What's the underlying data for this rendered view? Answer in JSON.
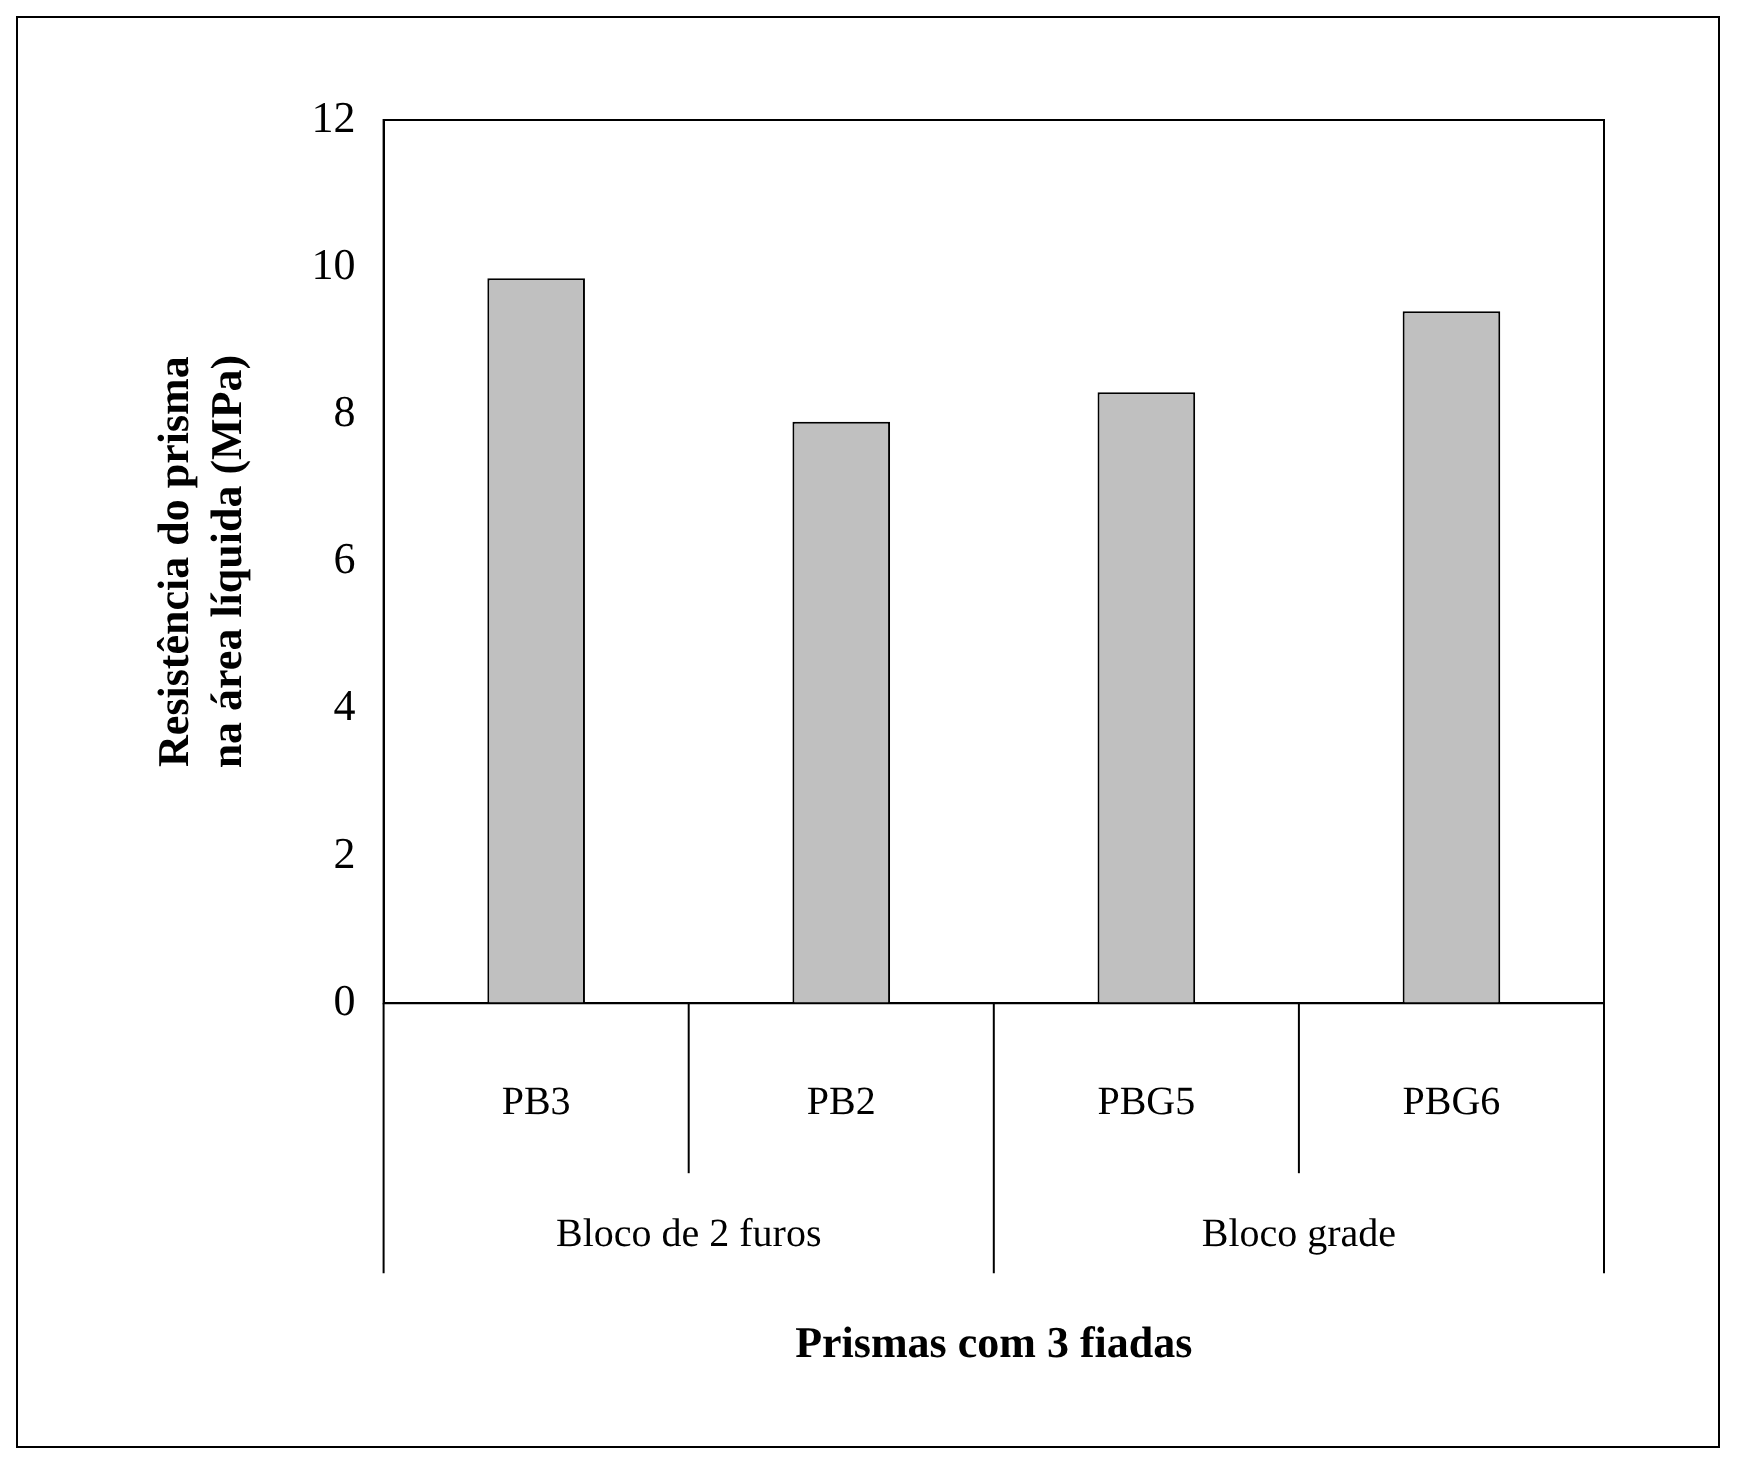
{
  "chart_data": {
    "type": "bar",
    "xlabel": "Prismas com 3 fiadas",
    "ylabel": "Resistência do prisma na área líquida (MPa)",
    "categories": [
      "PB3",
      "PB2",
      "PBG5",
      "PBG6"
    ],
    "values": [
      9.85,
      7.9,
      8.3,
      9.4
    ],
    "color": "#c0c0c0",
    "ylim": [
      0,
      12
    ],
    "yticks": [
      0,
      2,
      4,
      6,
      8,
      10,
      12
    ],
    "grid": false,
    "annotations": [
      "Bloco de 2 furos",
      "Bloco grade"
    ]
  }
}
